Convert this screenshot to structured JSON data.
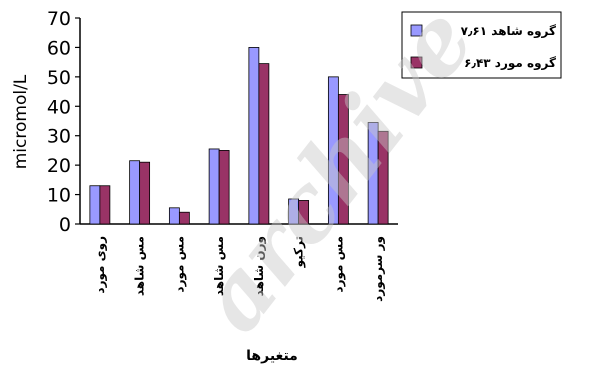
{
  "chart_data": {
    "type": "bar",
    "title": "",
    "ylabel": "micromol/L",
    "xlabel": "متغیرها",
    "ylim": [
      0,
      70
    ],
    "yticks": [
      0,
      10,
      20,
      30,
      40,
      50,
      60,
      70
    ],
    "grid": false,
    "legend_position": "top-right",
    "categories": [
      "روی مورد",
      "مس شاهد",
      "مس مورد",
      "مس شاهد",
      "ورن شاهد",
      "ترکیو",
      "مس مورد",
      "ور سرمورد"
    ],
    "series": [
      {
        "name": "گروه شاهد ۷٫۶۱",
        "color": "#9999ff",
        "values": [
          13,
          21.5,
          5.5,
          25.5,
          60,
          8.5,
          50,
          34.5
        ]
      },
      {
        "name": "گروه مورد ۶٫۴۳",
        "color": "#993366",
        "values": [
          13,
          21,
          4,
          25,
          54.5,
          8,
          44,
          31.5
        ]
      }
    ]
  },
  "watermark": "archive"
}
